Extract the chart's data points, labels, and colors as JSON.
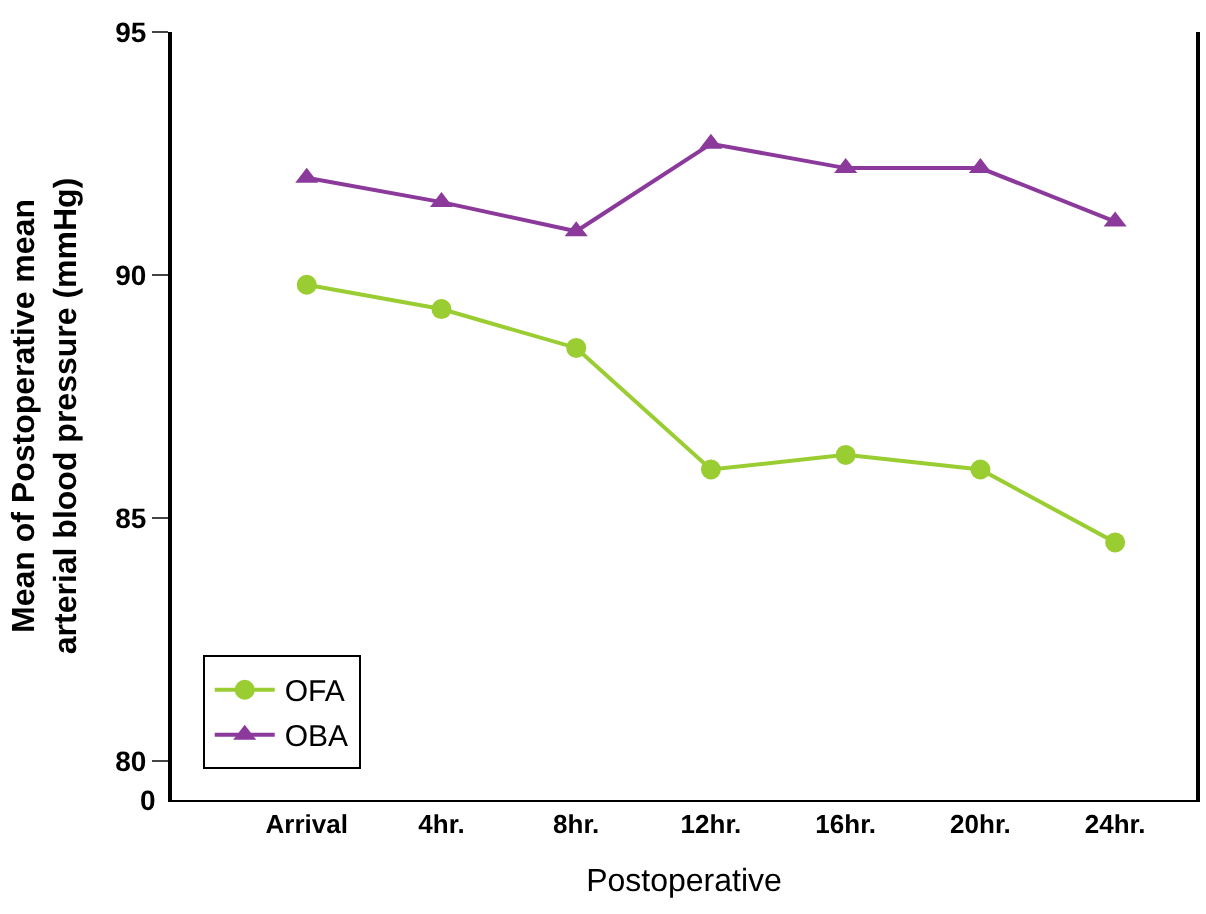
{
  "chart_data": {
    "type": "line",
    "xlabel": "Postoperative",
    "ylabel": "Mean of Postoperative mean arterial blood pressure (mmHg)",
    "categories": [
      "Arrival",
      "4hr.",
      "8hr.",
      "12hr.",
      "16hr.",
      "20hr.",
      "24hr."
    ],
    "series": [
      {
        "name": "OFA",
        "color": "#9acd32",
        "marker": "circle",
        "values": [
          89.8,
          89.3,
          88.5,
          86.0,
          86.3,
          86.0,
          84.5
        ]
      },
      {
        "name": "OBA",
        "color": "#8b3a9c",
        "marker": "triangle",
        "values": [
          92.0,
          91.5,
          90.9,
          92.7,
          92.2,
          92.2,
          91.1
        ]
      }
    ],
    "ylim": [
      79.2,
      95
    ],
    "yticks": [
      80,
      85,
      90,
      95
    ],
    "annotations": [
      "0"
    ],
    "legend": "bottom left",
    "line_style": "solid"
  }
}
